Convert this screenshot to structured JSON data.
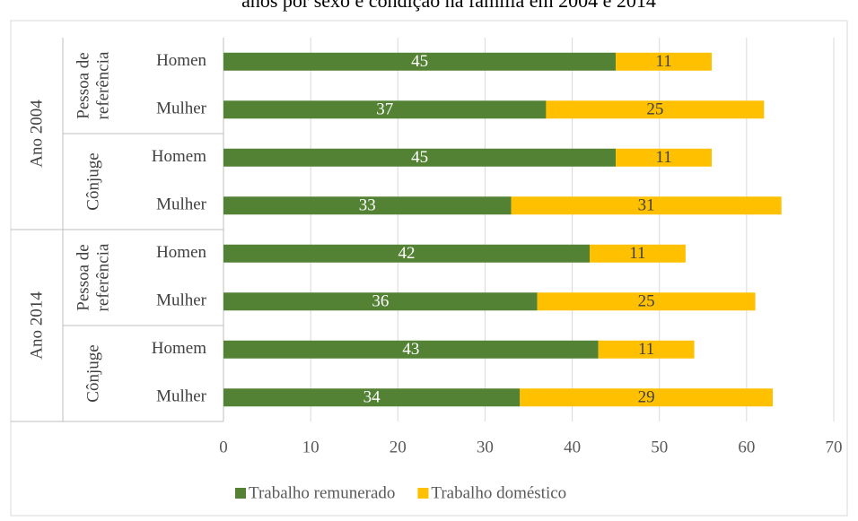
{
  "chart_data": {
    "type": "bar",
    "orientation": "horizontal",
    "stacked": true,
    "title": "anos por sexo e condição na família em 2004 e 2014",
    "categories": [
      "Homen",
      "Mulher",
      "Homem",
      "Mulher",
      "Homen",
      "Mulher",
      "Homem",
      "Mulher"
    ],
    "groups": [
      {
        "name": "Ano 2004",
        "subgroups": [
          {
            "name": [
              "Pessoa de",
              "referência"
            ]
          },
          {
            "name": [
              "Cônjuge"
            ]
          }
        ]
      },
      {
        "name": "Ano 2014",
        "subgroups": [
          {
            "name": [
              "Pessoa de",
              "referência"
            ]
          },
          {
            "name": [
              "Cônjuge"
            ]
          }
        ]
      }
    ],
    "series": [
      {
        "name": "Trabalho remunerado",
        "color": "#548235",
        "label_color": "#ffffff",
        "values": [
          45,
          37,
          45,
          33,
          42,
          36,
          43,
          34
        ]
      },
      {
        "name": "Trabalho doméstico",
        "color": "#ffc000",
        "label_color": "#404040",
        "values": [
          11,
          25,
          11,
          31,
          11,
          25,
          11,
          29
        ]
      }
    ],
    "xlim": [
      0,
      70
    ],
    "xticks": [
      0,
      10,
      20,
      30,
      40,
      50,
      60,
      70
    ],
    "grid": true,
    "legend": "bottom"
  }
}
